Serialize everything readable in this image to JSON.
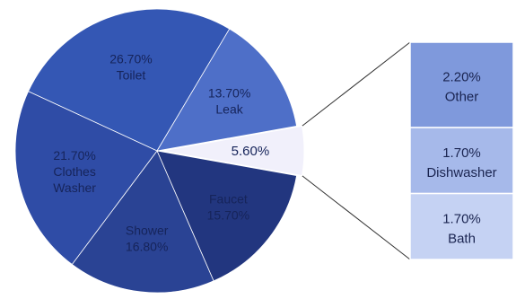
{
  "chart_data": {
    "type": "pie",
    "subtype": "pie-of-bar",
    "slices": [
      {
        "label": "Toilet",
        "value": 26.7,
        "value_text": "26.70%",
        "color": "#3457b4"
      },
      {
        "label": "Leak",
        "value": 13.7,
        "value_text": "13.70%",
        "color": "#4e6fc8"
      },
      {
        "label": "",
        "value": 5.6,
        "value_text": "5.60%",
        "color": "#f1f0fb"
      },
      {
        "label": "Faucet",
        "value": 15.7,
        "value_text": "15.70%",
        "color": "#22367f"
      },
      {
        "label": "Shower",
        "value": 16.8,
        "value_text": "16.80%",
        "color": "#2a4394"
      },
      {
        "label": "Clothes Washer",
        "label_lines": [
          "Clothes",
          "Washer"
        ],
        "value": 21.7,
        "value_text": "21.70%",
        "color": "#2f4ca6"
      }
    ],
    "breakdown": [
      {
        "label": "Other",
        "value": 2.2,
        "value_text": "2.20%",
        "color": "#7f99dc"
      },
      {
        "label": "Dishwasher",
        "value": 1.7,
        "value_text": "1.70%",
        "color": "#a6b9ea"
      },
      {
        "label": "Bath",
        "value": 1.7,
        "value_text": "1.70%",
        "color": "#c5d2f3"
      }
    ],
    "legend": "none"
  }
}
